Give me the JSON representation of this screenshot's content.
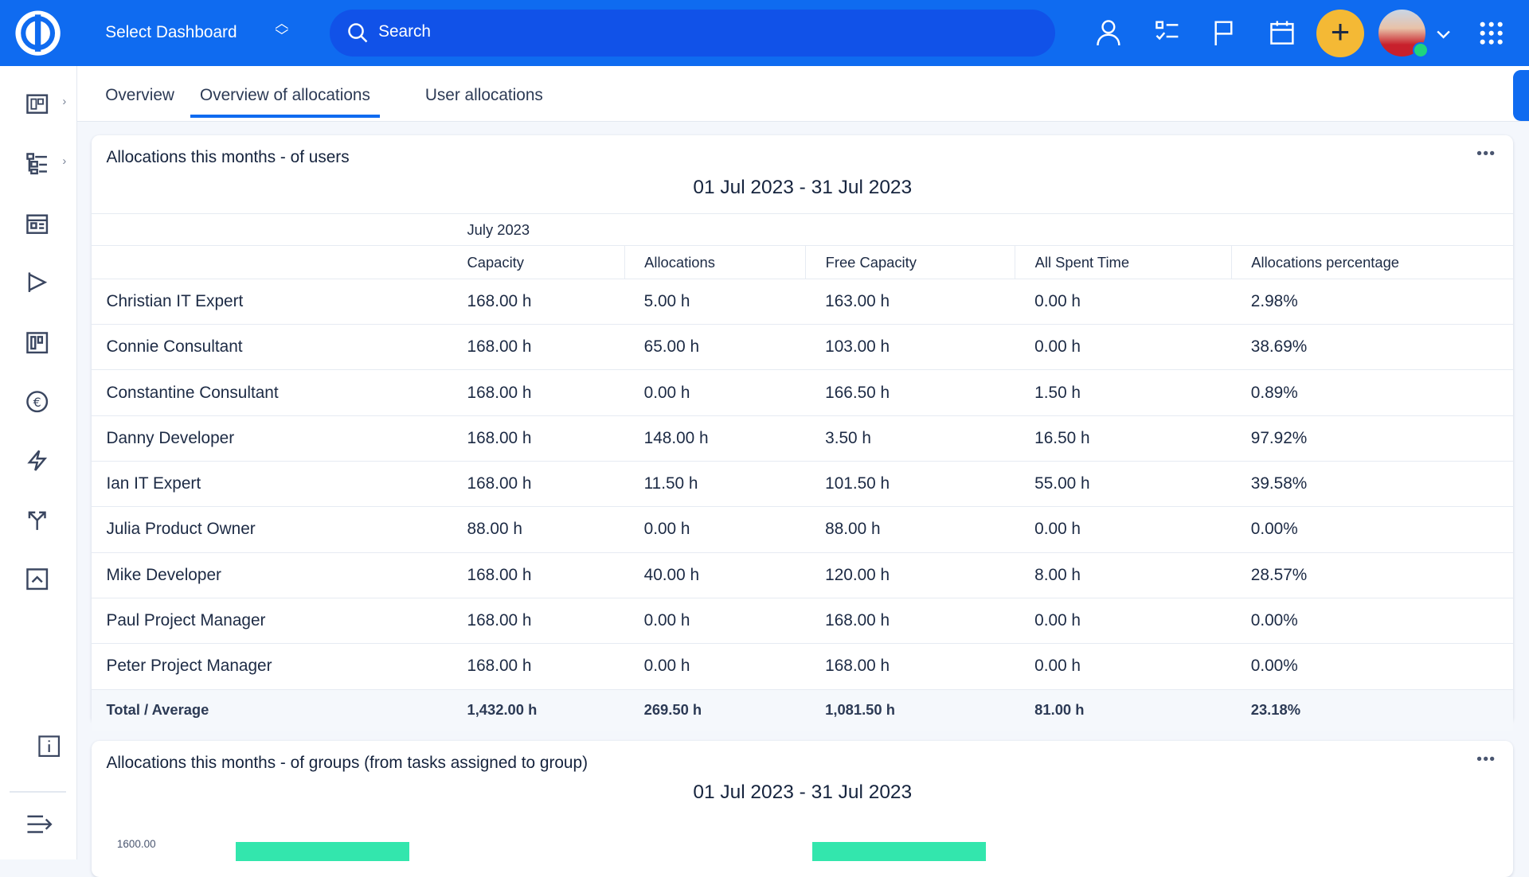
{
  "header": {
    "select_dashboard": "Select Dashboard",
    "search_placeholder": "Search",
    "icons": [
      "user-icon",
      "task-list-icon",
      "flag-icon",
      "calendar-icon",
      "plus-icon",
      "avatar",
      "apps-grid-icon"
    ],
    "accent": "#0f6bf0",
    "add_color": "#f4b935"
  },
  "sidebar": {
    "items": [
      "dashboard-icon",
      "tasks-icon",
      "planner-icon",
      "sprint-icon",
      "reports-icon",
      "finance-icon",
      "actions-icon",
      "workflow-icon",
      "collapse-box-icon",
      "info-icon",
      "menu-icon"
    ]
  },
  "tabs": [
    {
      "label": "Overview"
    },
    {
      "label": "Overview of allocations",
      "active": true
    },
    {
      "label": "User allocations"
    }
  ],
  "users_card": {
    "title": "Allocations this months - of users",
    "range": "01 Jul 2023 - 31 Jul 2023",
    "month": "July 2023",
    "columns": [
      "Capacity",
      "Allocations",
      "Free Capacity",
      "All Spent Time",
      "Allocations percentage"
    ],
    "rows": [
      [
        "Christian IT Expert",
        "168.00 h",
        "5.00 h",
        "163.00 h",
        "0.00 h",
        "2.98%"
      ],
      [
        "Connie Consultant",
        "168.00 h",
        "65.00 h",
        "103.00 h",
        "0.00 h",
        "38.69%"
      ],
      [
        "Constantine Consultant",
        "168.00 h",
        "0.00 h",
        "166.50 h",
        "1.50 h",
        "0.89%"
      ],
      [
        "Danny Developer",
        "168.00 h",
        "148.00 h",
        "3.50 h",
        "16.50 h",
        "97.92%"
      ],
      [
        "Ian IT Expert",
        "168.00 h",
        "11.50 h",
        "101.50 h",
        "55.00 h",
        "39.58%"
      ],
      [
        "Julia Product Owner",
        "88.00 h",
        "0.00 h",
        "88.00 h",
        "0.00 h",
        "0.00%"
      ],
      [
        "Mike Developer",
        "168.00 h",
        "40.00 h",
        "120.00 h",
        "8.00 h",
        "28.57%"
      ],
      [
        "Paul Project Manager",
        "168.00 h",
        "0.00 h",
        "168.00 h",
        "0.00 h",
        "0.00%"
      ],
      [
        "Peter Project Manager",
        "168.00 h",
        "0.00 h",
        "168.00 h",
        "0.00 h",
        "0.00%"
      ]
    ],
    "total": [
      "Total / Average",
      "1,432.00 h",
      "269.50 h",
      "1,081.50 h",
      "81.00 h",
      "23.18%"
    ]
  },
  "groups_card": {
    "title": "Allocations this months - of groups (from tasks assigned to group)",
    "range": "01 Jul 2023 - 31 Jul 2023",
    "y_tick": "1600.00",
    "bar_color": "#33e6ad"
  }
}
